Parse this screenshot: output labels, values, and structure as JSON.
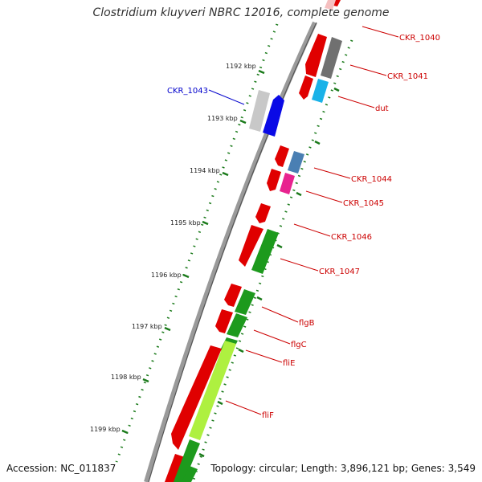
{
  "header": {
    "title": "Clostridium kluyveri NBRC 12016, complete genome"
  },
  "footer": {
    "accession": "Accession: NC_011837",
    "summary": "Topology: circular; Length: 3,896,121 bp; Genes: 3,549"
  },
  "scale_ticks": [
    "1192 kbp",
    "1193 kbp",
    "1194 kbp",
    "1195 kbp",
    "1196 kbp",
    "1197 kbp",
    "1198 kbp",
    "1199 kbp"
  ],
  "genes": [
    {
      "name": "CKR_1040",
      "color": "#cc0000"
    },
    {
      "name": "CKR_1041",
      "color": "#cc0000"
    },
    {
      "name": "dut",
      "color": "#cc0000"
    },
    {
      "name": "CKR_1043",
      "color": "#0000cc"
    },
    {
      "name": "CKR_1044",
      "color": "#cc0000"
    },
    {
      "name": "CKR_1045",
      "color": "#cc0000"
    },
    {
      "name": "CKR_1046",
      "color": "#cc0000"
    },
    {
      "name": "CKR_1047",
      "color": "#cc0000"
    },
    {
      "name": "flgB",
      "color": "#cc0000"
    },
    {
      "name": "flgC",
      "color": "#cc0000"
    },
    {
      "name": "fliE",
      "color": "#cc0000"
    },
    {
      "name": "fliF",
      "color": "#cc0000"
    }
  ]
}
